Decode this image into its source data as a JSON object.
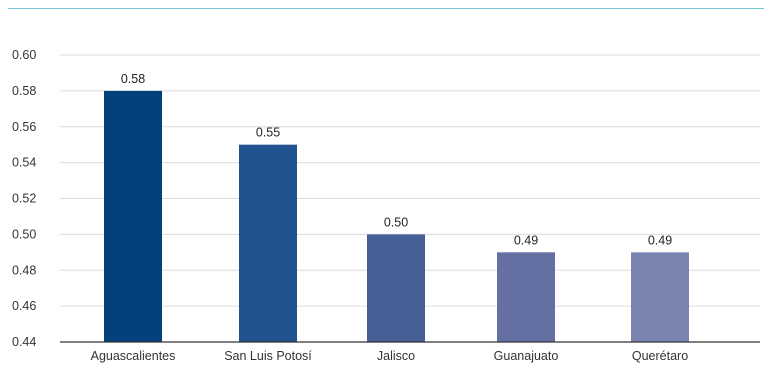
{
  "chart_data": {
    "type": "bar",
    "categories": [
      "Aguascalientes",
      "San Luis Potosí",
      "Jalisco",
      "Guanajuato",
      "Querétaro"
    ],
    "values": [
      0.58,
      0.55,
      0.5,
      0.49,
      0.49
    ],
    "value_labels": [
      "0.58",
      "0.55",
      "0.50",
      "0.49",
      "0.49"
    ],
    "y_ticks": [
      "0.44",
      "0.46",
      "0.48",
      "0.50",
      "0.52",
      "0.54",
      "0.56",
      "0.58",
      "0.60"
    ],
    "ylim": [
      0.44,
      0.6
    ],
    "grid": true,
    "legend": "none",
    "colors": [
      "#03417d",
      "#1f528f",
      "#465f96",
      "#6570a2",
      "#7b84b1"
    ],
    "title": "",
    "xlabel": "",
    "ylabel": ""
  },
  "colors": {
    "gridline": "#dcdcdc",
    "axis": "#333333",
    "accent_rule": "#72c7d6"
  }
}
